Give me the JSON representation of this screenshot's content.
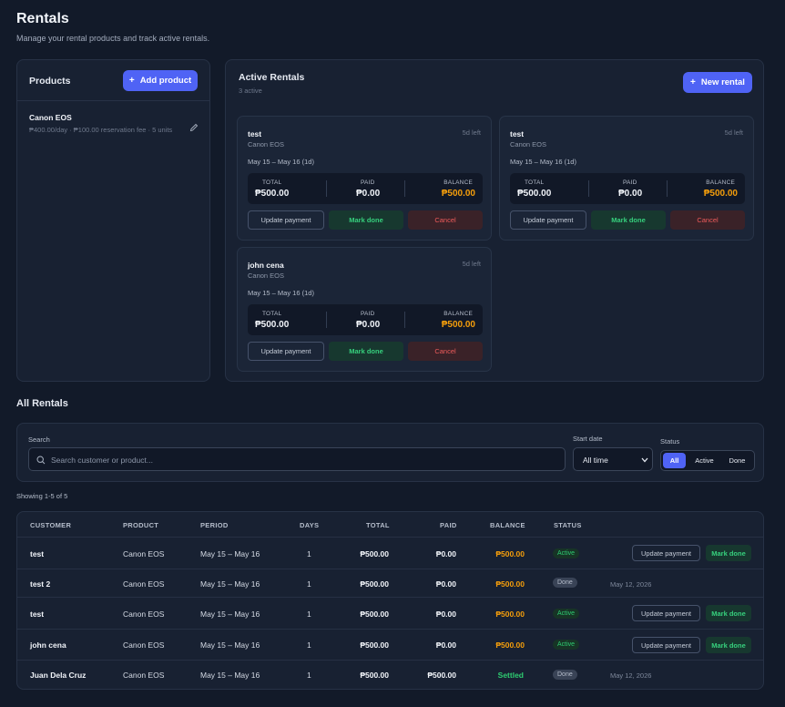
{
  "header": {
    "title": "Rentals",
    "subtitle": "Manage your rental products and track active rentals."
  },
  "products": {
    "title": "Products",
    "add_label": "Add product",
    "items": [
      {
        "name": "Canon EOS",
        "details": "₱400.00/day · ₱100.00 reservation fee · 5 units"
      }
    ]
  },
  "active": {
    "title": "Active Rentals",
    "count": "3 active",
    "new_label": "New rental",
    "labels": {
      "total": "TOTAL",
      "paid": "PAID",
      "balance": "BALANCE",
      "update": "Update payment",
      "done": "Mark done",
      "cancel": "Cancel"
    },
    "cards": [
      {
        "name": "test",
        "product": "Canon EOS",
        "left": "5d left",
        "period": "May 15 – May 16 (1d)",
        "total": "₱500.00",
        "paid": "₱0.00",
        "balance": "₱500.00"
      },
      {
        "name": "test",
        "product": "Canon EOS",
        "left": "5d left",
        "period": "May 15 – May 16 (1d)",
        "total": "₱500.00",
        "paid": "₱0.00",
        "balance": "₱500.00"
      },
      {
        "name": "john cena",
        "product": "Canon EOS",
        "left": "5d left",
        "period": "May 15 – May 16 (1d)",
        "total": "₱500.00",
        "paid": "₱0.00",
        "balance": "₱500.00"
      }
    ]
  },
  "all": {
    "title": "All Rentals",
    "search_label": "Search",
    "search_placeholder": "Search customer or product...",
    "date_label": "Start date",
    "date_value": "All time",
    "status_label": "Status",
    "status_options": [
      "All",
      "Active",
      "Done"
    ],
    "showing": "Showing 1-5 of 5",
    "columns": [
      "CUSTOMER",
      "PRODUCT",
      "PERIOD",
      "DAYS",
      "TOTAL",
      "PAID",
      "BALANCE",
      "STATUS"
    ],
    "update_label": "Update payment",
    "done_label": "Mark done",
    "rows": [
      {
        "customer": "test",
        "product": "Canon EOS",
        "period": "May 15 – May 16",
        "days": "1",
        "total": "₱500.00",
        "paid": "₱0.00",
        "balance": "₱500.00",
        "status": "Active",
        "date": ""
      },
      {
        "customer": "test 2",
        "product": "Canon EOS",
        "period": "May 15 – May 16",
        "days": "1",
        "total": "₱500.00",
        "paid": "₱0.00",
        "balance": "₱500.00",
        "status": "Done",
        "date": "May 12, 2026"
      },
      {
        "customer": "test",
        "product": "Canon EOS",
        "period": "May 15 – May 16",
        "days": "1",
        "total": "₱500.00",
        "paid": "₱0.00",
        "balance": "₱500.00",
        "status": "Active",
        "date": ""
      },
      {
        "customer": "john cena",
        "product": "Canon EOS",
        "period": "May 15 – May 16",
        "days": "1",
        "total": "₱500.00",
        "paid": "₱0.00",
        "balance": "₱500.00",
        "status": "Active",
        "date": ""
      },
      {
        "customer": "Juan Dela Cruz",
        "product": "Canon EOS",
        "period": "May 15 – May 16",
        "days": "1",
        "total": "₱500.00",
        "paid": "₱500.00",
        "balance": "Settled",
        "status": "Done",
        "date": "May 12, 2026"
      }
    ]
  },
  "colors": {
    "accent": "#4f63f5",
    "orange": "#f59e0b",
    "green": "#2ecc71",
    "red": "#ee5b5b"
  }
}
